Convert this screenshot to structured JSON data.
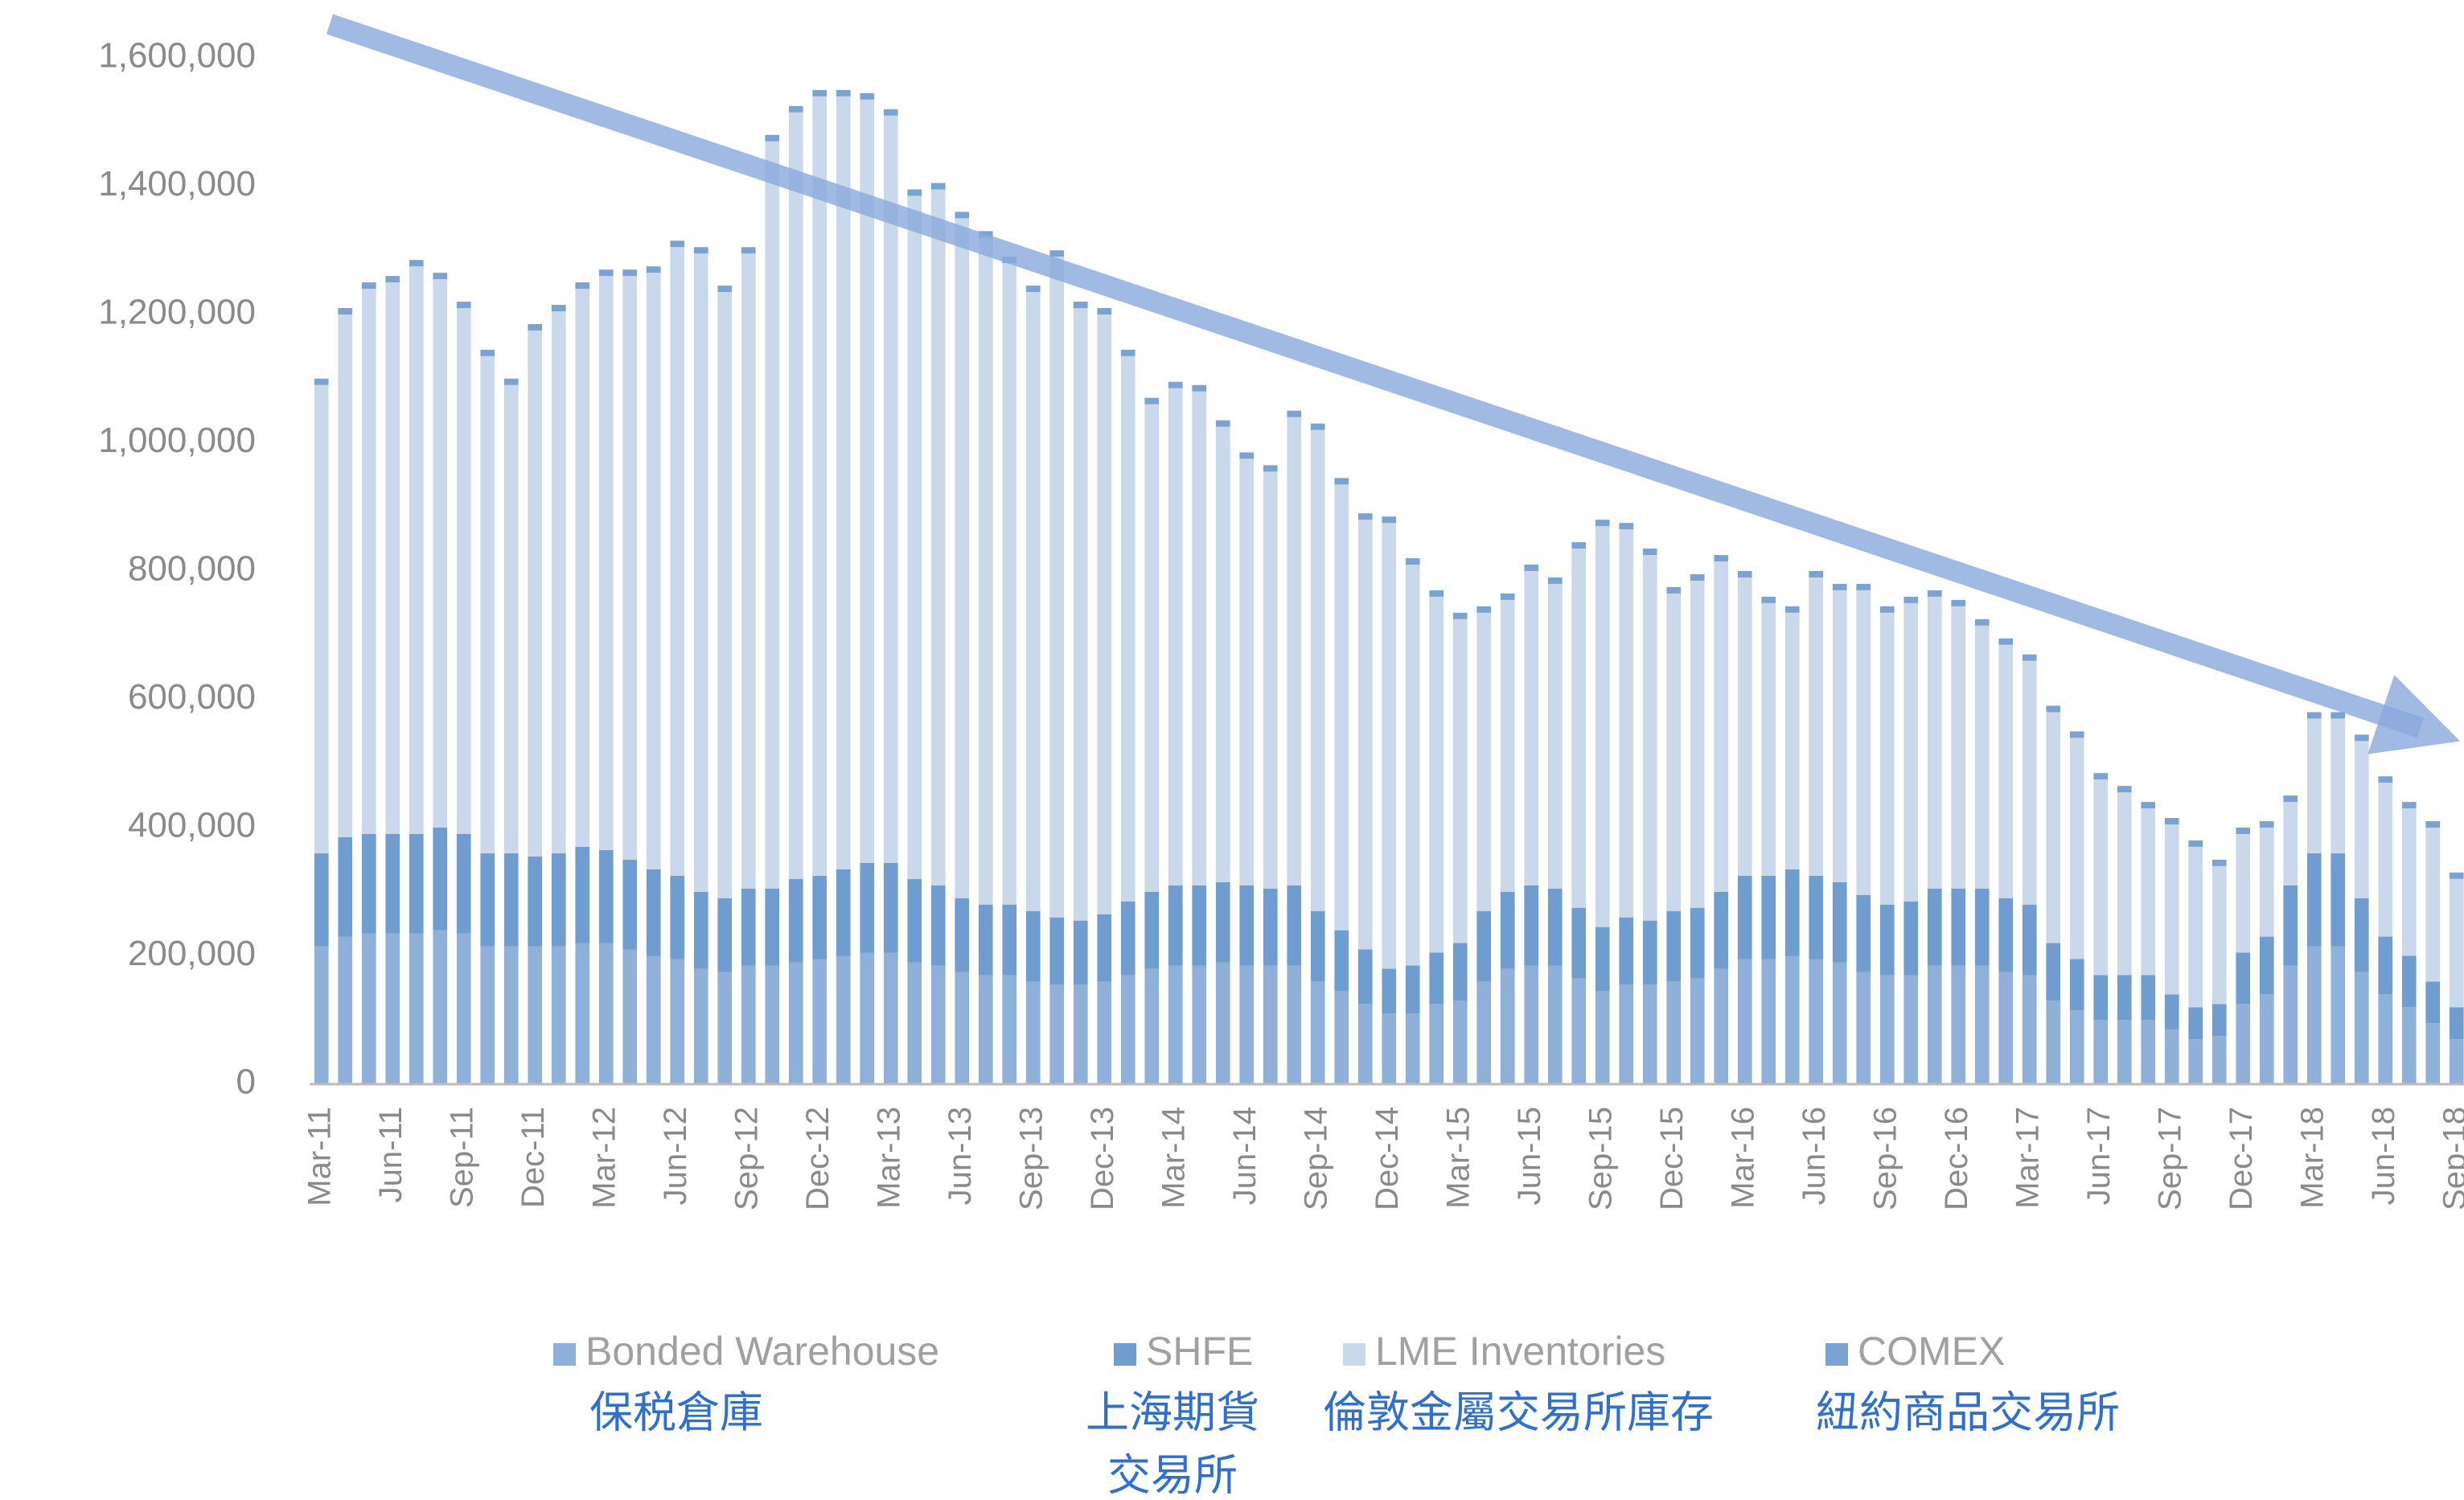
{
  "chart_data": {
    "type": "stacked_bar",
    "categories": [
      "Mar-11",
      null,
      null,
      "Jun-11",
      null,
      null,
      "Sep-11",
      null,
      null,
      "Dec-11",
      null,
      null,
      "Mar-12",
      null,
      null,
      "Jun-12",
      null,
      null,
      "Sep-12",
      null,
      null,
      "Dec-12",
      null,
      null,
      "Mar-13",
      null,
      null,
      "Jun-13",
      null,
      null,
      "Sep-13",
      null,
      null,
      "Dec-13",
      null,
      null,
      "Mar-14",
      null,
      null,
      "Jun-14",
      null,
      null,
      "Sep-14",
      null,
      null,
      "Dec-14",
      null,
      null,
      "Mar-15",
      null,
      null,
      "Jun-15",
      null,
      null,
      "Sep-15",
      null,
      null,
      "Dec-15",
      null,
      null,
      "Mar-16",
      null,
      null,
      "Jun-16",
      null,
      null,
      "Sep-16",
      null,
      null,
      "Dec-16",
      null,
      null,
      "Mar-17",
      null,
      null,
      "Jun-17",
      null,
      null,
      "Sep-17",
      null,
      null,
      "Dec-17",
      null,
      null,
      "Mar-18",
      null,
      null,
      "Jun-18",
      null,
      null,
      "Sep-18"
    ],
    "series": [
      {
        "name": "Bonded Warehouse",
        "color": "#8fb1d9",
        "values": [
          215000,
          230000,
          235000,
          235000,
          235000,
          240000,
          235000,
          215000,
          215000,
          215000,
          215000,
          220000,
          220000,
          210000,
          200000,
          195000,
          180000,
          175000,
          185000,
          185000,
          190000,
          195000,
          200000,
          205000,
          205000,
          190000,
          185000,
          175000,
          170000,
          170000,
          160000,
          155000,
          155000,
          160000,
          170000,
          180000,
          185000,
          185000,
          190000,
          185000,
          185000,
          185000,
          160000,
          145000,
          125000,
          110000,
          110000,
          125000,
          130000,
          160000,
          180000,
          185000,
          185000,
          165000,
          145000,
          155000,
          155000,
          160000,
          165000,
          180000,
          195000,
          195000,
          200000,
          195000,
          190000,
          175000,
          170000,
          170000,
          185000,
          185000,
          185000,
          175000,
          170000,
          130000,
          115000,
          100000,
          100000,
          100000,
          85000,
          70000,
          75000,
          125000,
          140000,
          185000,
          215000,
          215000,
          175000,
          140000,
          120000,
          95000,
          70000
        ]
      },
      {
        "name": "SHFE",
        "color": "#6f9dd0",
        "values": [
          145000,
          155000,
          155000,
          155000,
          155000,
          160000,
          155000,
          145000,
          145000,
          140000,
          145000,
          150000,
          145000,
          140000,
          135000,
          130000,
          120000,
          115000,
          120000,
          120000,
          130000,
          130000,
          135000,
          140000,
          140000,
          130000,
          125000,
          115000,
          110000,
          110000,
          110000,
          105000,
          100000,
          105000,
          115000,
          120000,
          125000,
          125000,
          125000,
          125000,
          120000,
          125000,
          110000,
          95000,
          85000,
          70000,
          75000,
          80000,
          90000,
          110000,
          120000,
          125000,
          120000,
          110000,
          100000,
          105000,
          100000,
          110000,
          110000,
          120000,
          130000,
          130000,
          135000,
          130000,
          125000,
          120000,
          110000,
          115000,
          120000,
          120000,
          120000,
          115000,
          110000,
          90000,
          80000,
          70000,
          70000,
          70000,
          55000,
          50000,
          50000,
          80000,
          90000,
          125000,
          145000,
          145000,
          115000,
          90000,
          80000,
          65000,
          50000
        ]
      },
      {
        "name": "LME Inventories",
        "color": "#c9d8ea",
        "values": [
          730000,
          815000,
          850000,
          860000,
          885000,
          855000,
          820000,
          775000,
          730000,
          820000,
          845000,
          870000,
          895000,
          910000,
          930000,
          980000,
          995000,
          945000,
          990000,
          1165000,
          1195000,
          1215000,
          1205000,
          1190000,
          1165000,
          1065000,
          1085000,
          1060000,
          1040000,
          1000000,
          965000,
          1030000,
          955000,
          935000,
          850000,
          760000,
          775000,
          770000,
          710000,
          665000,
          650000,
          730000,
          750000,
          695000,
          670000,
          695000,
          625000,
          555000,
          505000,
          465000,
          455000,
          490000,
          475000,
          560000,
          625000,
          605000,
          570000,
          495000,
          510000,
          515000,
          465000,
          425000,
          400000,
          465000,
          455000,
          475000,
          455000,
          465000,
          455000,
          440000,
          410000,
          395000,
          380000,
          360000,
          345000,
          305000,
          285000,
          260000,
          265000,
          250000,
          215000,
          185000,
          170000,
          130000,
          210000,
          210000,
          245000,
          240000,
          230000,
          240000,
          200000
        ]
      },
      {
        "name": "COMEX",
        "color": "#7aa3d2",
        "values": [
          10000,
          10000,
          10000,
          10000,
          10000,
          10000,
          10000,
          10000,
          10000,
          10000,
          10000,
          10000,
          10000,
          10000,
          10000,
          10000,
          10000,
          10000,
          10000,
          10000,
          10000,
          10000,
          10000,
          10000,
          10000,
          10000,
          10000,
          10000,
          10000,
          10000,
          10000,
          10000,
          10000,
          10000,
          10000,
          10000,
          10000,
          10000,
          10000,
          10000,
          10000,
          10000,
          10000,
          10000,
          10000,
          10000,
          10000,
          10000,
          10000,
          10000,
          10000,
          10000,
          10000,
          10000,
          10000,
          10000,
          10000,
          10000,
          10000,
          10000,
          10000,
          10000,
          10000,
          10000,
          10000,
          10000,
          10000,
          10000,
          10000,
          10000,
          10000,
          10000,
          10000,
          10000,
          10000,
          10000,
          10000,
          10000,
          10000,
          10000,
          10000,
          10000,
          10000,
          10000,
          10000,
          10000,
          10000,
          10000,
          10000,
          10000,
          10000
        ]
      }
    ],
    "ylim": [
      0,
      1600000
    ],
    "yticks": [
      0,
      {
        "value": 200000,
        "label": "200,000"
      },
      {
        "value": 400000,
        "label": "400,000"
      },
      {
        "value": 600000,
        "label": "600,000"
      },
      {
        "value": 800000,
        "label": "800,000"
      },
      {
        "value": 1000000,
        "label": "1,000,000"
      },
      {
        "value": 1200000,
        "label": "1,200,000"
      },
      {
        "value": 1400000,
        "label": "1,400,000"
      },
      {
        "value": 1600000,
        "label": "1,600,000"
      }
    ],
    "grid": false,
    "legend": "bottom",
    "annotations": [
      "保税倉庫",
      [
        "上海期貨",
        "交易所"
      ],
      "倫敦金屬交易所庫存",
      "紐約商品交易所"
    ]
  }
}
